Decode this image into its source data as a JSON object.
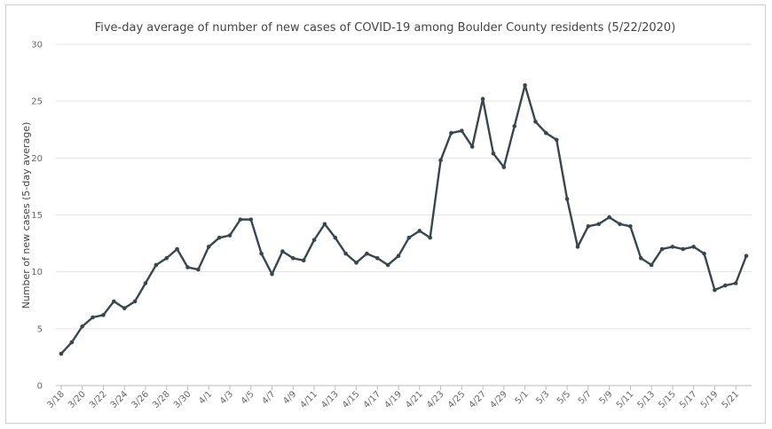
{
  "chart_data": {
    "type": "line",
    "title": "Five-day average of number of new cases of COVID-19 among Boulder County residents (5/22/2020)",
    "ylabel": "Number of new cases (5-day average)",
    "xlabel": "",
    "ylim": [
      0,
      30
    ],
    "yticks": [
      0,
      5,
      10,
      15,
      20,
      25,
      30
    ],
    "grid": true,
    "legend": "none",
    "line_color": "#37474f",
    "x": [
      "3/18",
      "3/19",
      "3/20",
      "3/21",
      "3/22",
      "3/23",
      "3/24",
      "3/25",
      "3/26",
      "3/27",
      "3/28",
      "3/29",
      "3/30",
      "3/31",
      "4/1",
      "4/2",
      "4/3",
      "4/4",
      "4/5",
      "4/6",
      "4/7",
      "4/8",
      "4/9",
      "4/10",
      "4/11",
      "4/12",
      "4/13",
      "4/14",
      "4/15",
      "4/16",
      "4/17",
      "4/18",
      "4/19",
      "4/20",
      "4/21",
      "4/22",
      "4/23",
      "4/24",
      "4/25",
      "4/26",
      "4/27",
      "4/28",
      "4/29",
      "4/30",
      "5/1",
      "5/2",
      "5/3",
      "5/4",
      "5/5",
      "5/6",
      "5/7",
      "5/8",
      "5/9",
      "5/10",
      "5/11",
      "5/12",
      "5/13",
      "5/14",
      "5/15",
      "5/16",
      "5/17",
      "5/18",
      "5/19",
      "5/20",
      "5/21",
      "5/22"
    ],
    "xtick_labels": [
      "3/18",
      "3/20",
      "3/22",
      "3/24",
      "3/26",
      "3/28",
      "3/30",
      "4/1",
      "4/3",
      "4/5",
      "4/7",
      "4/9",
      "4/11",
      "4/13",
      "4/15",
      "4/17",
      "4/19",
      "4/21",
      "4/23",
      "4/25",
      "4/27",
      "4/29",
      "5/1",
      "5/3",
      "5/5",
      "5/7",
      "5/9",
      "5/11",
      "5/13",
      "5/15",
      "5/17",
      "5/19",
      "5/21"
    ],
    "series": [
      {
        "values": [
          2.8,
          3.8,
          5.2,
          6.0,
          6.2,
          7.4,
          6.8,
          7.4,
          9.0,
          10.6,
          11.2,
          12.0,
          10.4,
          10.2,
          12.2,
          13.0,
          13.2,
          14.6,
          14.6,
          11.6,
          9.8,
          11.8,
          11.2,
          11.0,
          12.8,
          14.2,
          13.0,
          11.6,
          10.8,
          11.6,
          11.2,
          10.6,
          11.4,
          13.0,
          13.6,
          13.0,
          19.8,
          22.2,
          22.4,
          21.0,
          25.2,
          20.4,
          19.2,
          22.8,
          26.4,
          23.2,
          22.2,
          21.6,
          16.4,
          12.2,
          14.0,
          14.2,
          14.8,
          14.2,
          14.0,
          11.2,
          10.6,
          12.0,
          12.2,
          12.0,
          12.2,
          11.6,
          8.4,
          8.8,
          9.0,
          11.4
        ]
      }
    ]
  }
}
